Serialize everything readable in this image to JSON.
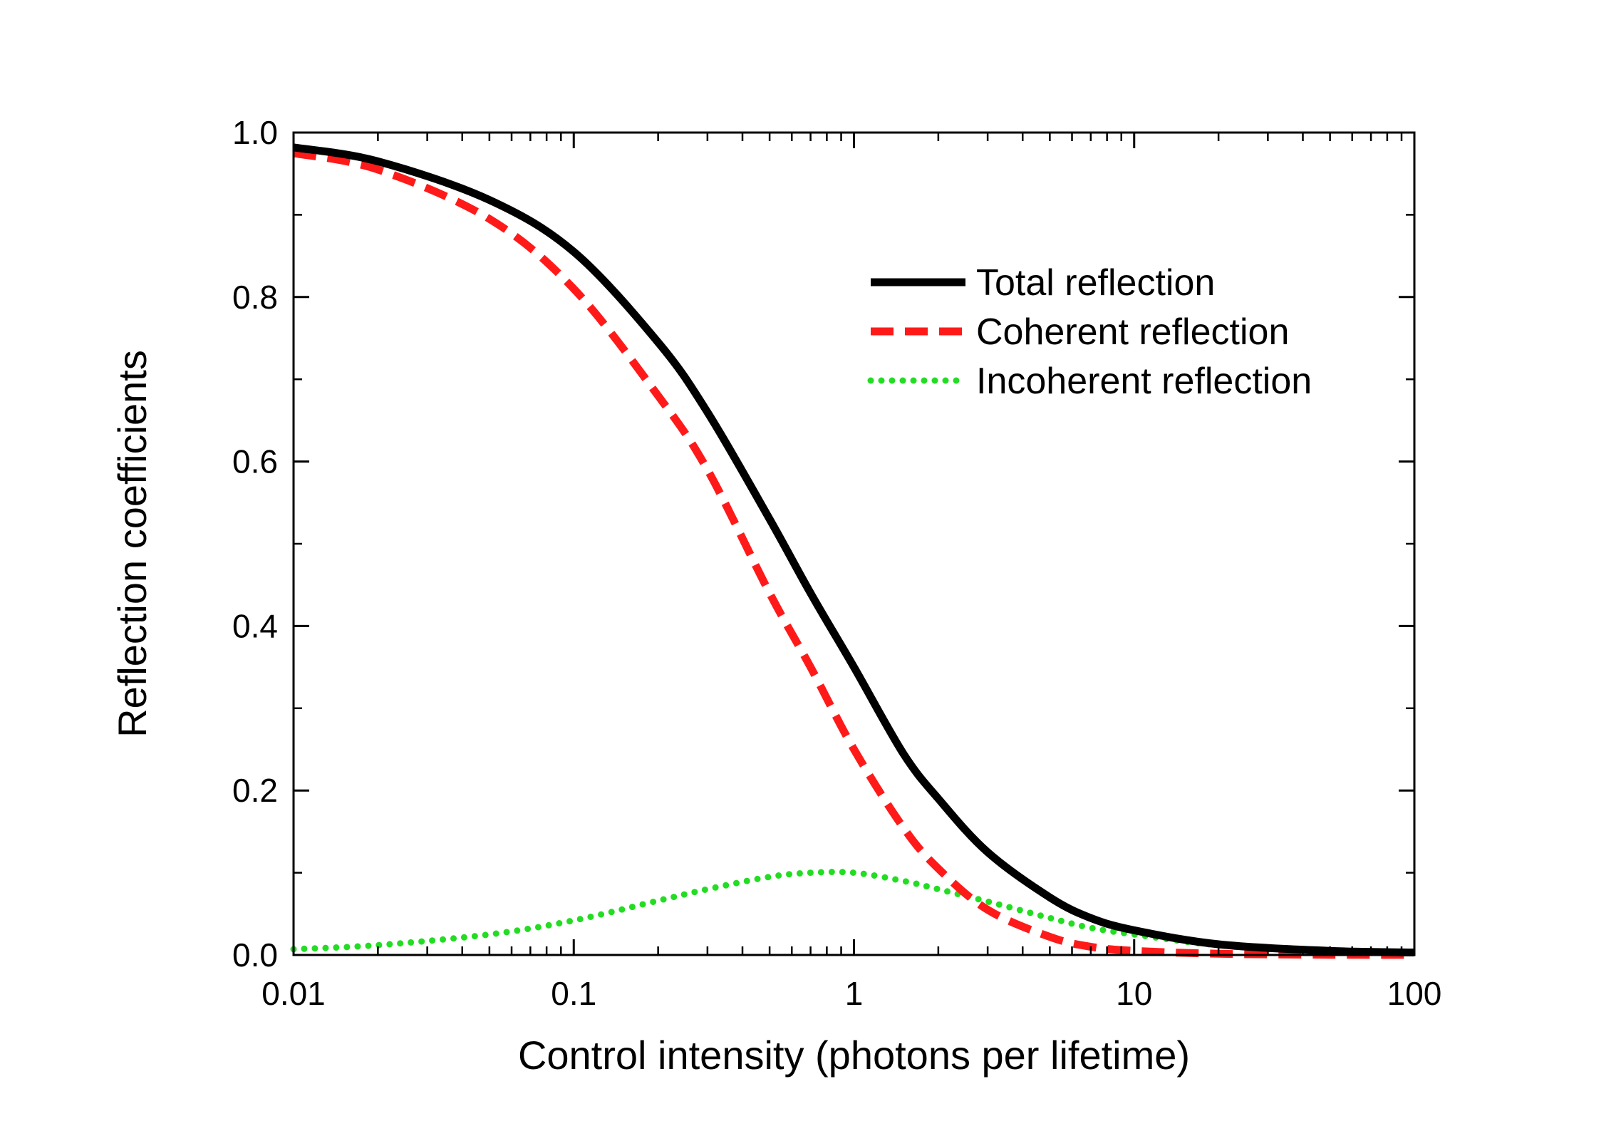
{
  "chart_data": {
    "type": "line",
    "title": "",
    "xlabel": "Control intensity (photons per lifetime)",
    "ylabel": "Reflection coefficients",
    "xscale": "log",
    "xlim": [
      0.01,
      100
    ],
    "ylim": [
      0.0,
      1.0
    ],
    "grid": false,
    "legend_position": "top-right",
    "x_ticks": [
      0.01,
      0.1,
      1,
      10,
      100
    ],
    "x_tick_labels": [
      "0.01",
      "0.1",
      "1",
      "10",
      "100"
    ],
    "y_ticks": [
      0.0,
      0.2,
      0.4,
      0.6,
      0.8,
      1.0
    ],
    "y_tick_labels": [
      "0.0",
      "0.2",
      "0.4",
      "0.6",
      "0.8",
      "1.0"
    ],
    "x": [
      0.01,
      0.02,
      0.05,
      0.1,
      0.2,
      0.3,
      0.5,
      0.7,
      1,
      1.5,
      2,
      3,
      5,
      7,
      10,
      20,
      50,
      100
    ],
    "series": [
      {
        "name": "Total reflection",
        "color": "#000000",
        "style": "solid",
        "values": [
          0.982,
          0.965,
          0.918,
          0.855,
          0.745,
          0.66,
          0.53,
          0.44,
          0.35,
          0.245,
          0.19,
          0.125,
          0.07,
          0.045,
          0.03,
          0.013,
          0.005,
          0.003
        ]
      },
      {
        "name": "Coherent reflection",
        "color": "#ff1a1a",
        "style": "dashed",
        "values": [
          0.975,
          0.955,
          0.895,
          0.81,
          0.68,
          0.59,
          0.44,
          0.35,
          0.25,
          0.155,
          0.105,
          0.055,
          0.022,
          0.01,
          0.005,
          0.0015,
          0.0003,
          0.0001
        ]
      },
      {
        "name": "Incoherent reflection",
        "color": "#22dd22",
        "style": "dotted",
        "values": [
          0.007,
          0.012,
          0.025,
          0.042,
          0.066,
          0.08,
          0.095,
          0.1,
          0.1,
          0.09,
          0.08,
          0.065,
          0.045,
          0.033,
          0.025,
          0.012,
          0.005,
          0.003
        ]
      }
    ]
  }
}
